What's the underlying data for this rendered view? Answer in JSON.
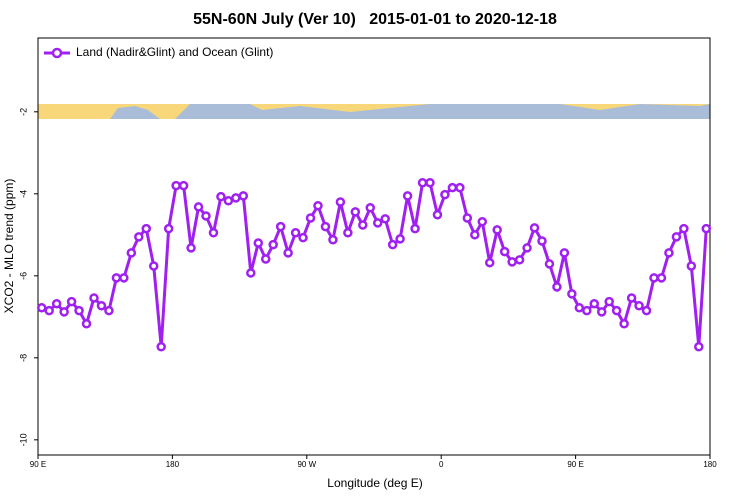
{
  "chart_data": {
    "type": "line",
    "title": "55N-60N July (Ver 10)   2015-01-01 to 2020-12-18",
    "x_label": "Longitude (deg E)",
    "y_label": "XCO2 - MLO trend (ppm)",
    "legend": "top-left",
    "x": [
      92.5,
      97.5,
      102.5,
      107.5,
      112.5,
      117.5,
      122.5,
      127.5,
      132.5,
      137.5,
      142.5,
      147.5,
      152.5,
      157.5,
      162.5,
      167.5,
      172.5,
      177.5,
      182.5,
      187.5,
      192.5,
      197.5,
      202.5,
      207.5,
      212.5,
      217.5,
      222.5,
      227.5,
      232.5,
      237.5,
      242.5,
      247.5,
      252.5,
      257.5,
      262.5,
      267.5,
      272.5,
      277.5,
      282.5,
      287.5,
      292.5,
      297.5,
      302.5,
      307.5,
      312.5,
      317.5,
      322.5,
      327.5,
      332.5,
      337.5,
      342.5,
      347.5,
      352.5,
      357.5,
      362.5,
      367.5,
      372.5,
      377.5,
      382.5,
      387.5,
      392.5,
      397.5,
      402.5,
      407.5,
      412.5,
      417.5,
      422.5,
      427.5,
      432.5,
      437.5,
      442.5,
      447.5,
      452.5,
      457.5,
      462.5,
      467.5,
      472.5,
      477.5,
      482.5,
      487.5,
      492.5,
      497.5,
      502.5,
      507.5,
      512.5,
      517.5,
      522.5,
      527.5,
      532.5,
      537.5
    ],
    "series": [
      {
        "name": "Land (Nadir&Glint) and Ocean (Glint)",
        "color": "#a020f0",
        "values": [
          -6.78,
          -6.85,
          -6.68,
          -6.88,
          -6.63,
          -6.85,
          -7.17,
          -6.54,
          -6.73,
          -6.85,
          -6.05,
          -6.05,
          -5.44,
          -5.05,
          -4.85,
          -5.76,
          -7.73,
          -4.85,
          -3.8,
          -3.8,
          -5.32,
          -4.32,
          -4.54,
          -4.95,
          -4.07,
          -4.17,
          -4.1,
          -4.05,
          -5.93,
          -5.2,
          -5.59,
          -5.24,
          -4.8,
          -5.44,
          -4.95,
          -5.07,
          -4.59,
          -4.29,
          -4.8,
          -5.12,
          -4.2,
          -4.95,
          -4.44,
          -4.76,
          -4.34,
          -4.71,
          -4.61,
          -5.24,
          -5.1,
          -4.05,
          -4.85,
          -3.73,
          -3.73,
          -4.51,
          -4.02,
          -3.85,
          -3.85,
          -4.59,
          -5.0,
          -4.68,
          -5.68,
          -4.88,
          -5.41,
          -5.66,
          -5.61,
          -5.32,
          -4.83,
          -5.15,
          -5.71,
          -6.27,
          -5.44,
          -6.44,
          -6.78,
          -6.85,
          -6.68,
          -6.88,
          -6.63,
          -6.85,
          -7.17,
          -6.54,
          -6.73,
          -6.85,
          -6.05,
          -6.05,
          -5.44,
          -5.05,
          -4.85,
          -5.76,
          -7.73,
          -4.85
        ]
      }
    ],
    "xlim": [
      90,
      540
    ],
    "xticks": [
      {
        "value": 90,
        "label": "90 E"
      },
      180,
      {
        "value": 270,
        "label": "90 W"
      },
      {
        "value": 360,
        "label": "0"
      },
      {
        "value": 450,
        "label": "90 E"
      },
      {
        "value": 540,
        "label": "180"
      }
    ],
    "ylim": [
      -10.37,
      -0.2
    ],
    "yticks": [
      -2,
      -4,
      -6,
      -8,
      -10
    ]
  }
}
